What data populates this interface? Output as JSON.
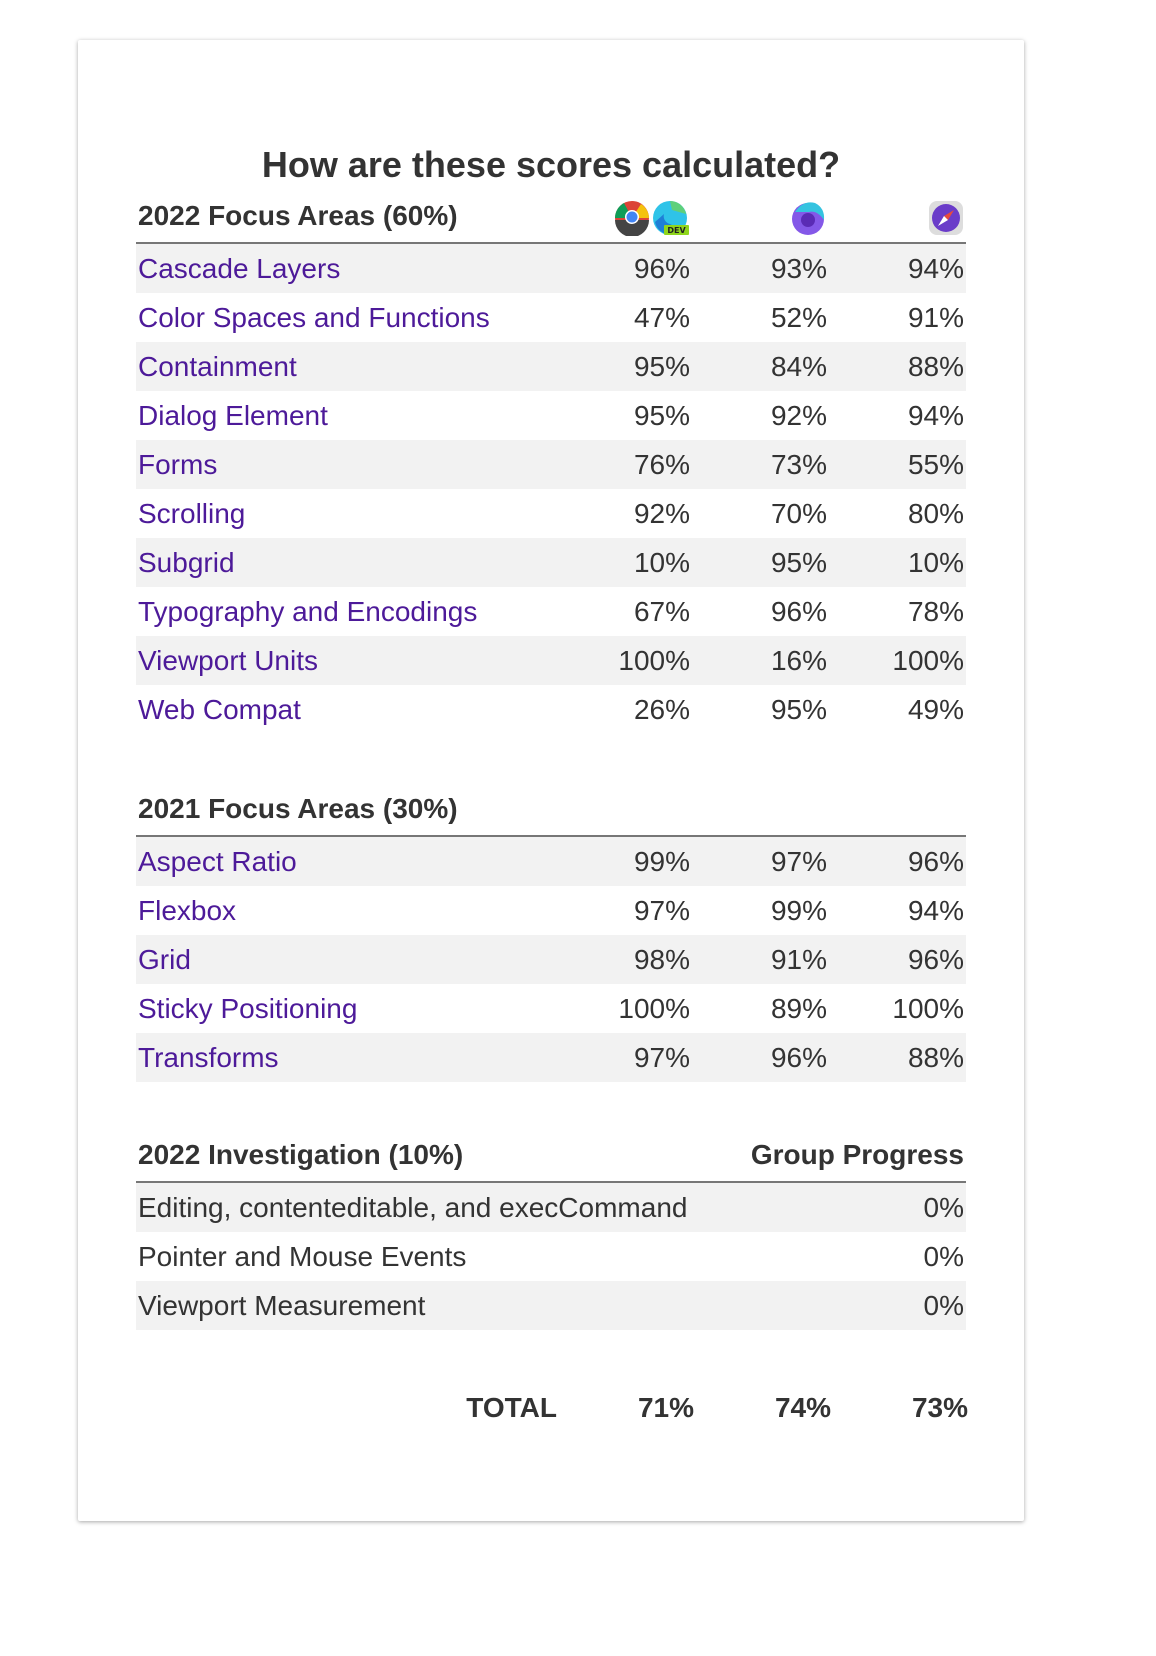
{
  "title": "How are these scores calculated?",
  "browsers": [
    {
      "icons": [
        "chrome-dev-icon",
        "edge-dev-icon"
      ]
    },
    {
      "icons": [
        "firefox-nightly-icon"
      ]
    },
    {
      "icons": [
        "safari-tech-preview-icon"
      ]
    }
  ],
  "focus2022": {
    "heading": "2022 Focus Areas (60%)",
    "rows": [
      {
        "name": "Cascade Layers",
        "scores": [
          "96%",
          "93%",
          "94%"
        ]
      },
      {
        "name": "Color Spaces and Functions",
        "scores": [
          "47%",
          "52%",
          "91%"
        ]
      },
      {
        "name": "Containment",
        "scores": [
          "95%",
          "84%",
          "88%"
        ]
      },
      {
        "name": "Dialog Element",
        "scores": [
          "95%",
          "92%",
          "94%"
        ]
      },
      {
        "name": "Forms",
        "scores": [
          "76%",
          "73%",
          "55%"
        ]
      },
      {
        "name": "Scrolling",
        "scores": [
          "92%",
          "70%",
          "80%"
        ]
      },
      {
        "name": "Subgrid",
        "scores": [
          "10%",
          "95%",
          "10%"
        ]
      },
      {
        "name": "Typography and Encodings",
        "scores": [
          "67%",
          "96%",
          "78%"
        ]
      },
      {
        "name": "Viewport Units",
        "scores": [
          "100%",
          "16%",
          "100%"
        ]
      },
      {
        "name": "Web Compat",
        "scores": [
          "26%",
          "95%",
          "49%"
        ]
      }
    ]
  },
  "focus2021": {
    "heading": "2021 Focus Areas (30%)",
    "rows": [
      {
        "name": "Aspect Ratio",
        "scores": [
          "99%",
          "97%",
          "96%"
        ]
      },
      {
        "name": "Flexbox",
        "scores": [
          "97%",
          "99%",
          "94%"
        ]
      },
      {
        "name": "Grid",
        "scores": [
          "98%",
          "91%",
          "96%"
        ]
      },
      {
        "name": "Sticky Positioning",
        "scores": [
          "100%",
          "89%",
          "100%"
        ]
      },
      {
        "name": "Transforms",
        "scores": [
          "97%",
          "96%",
          "88%"
        ]
      }
    ]
  },
  "investigation": {
    "heading": "2022 Investigation (10%)",
    "progress_heading": "Group Progress",
    "rows": [
      {
        "name": "Editing, contenteditable, and execCommand",
        "progress": "0%"
      },
      {
        "name": "Pointer and Mouse Events",
        "progress": "0%"
      },
      {
        "name": "Viewport Measurement",
        "progress": "0%"
      }
    ]
  },
  "total": {
    "label": "TOTAL",
    "scores": [
      "71%",
      "74%",
      "73%"
    ]
  },
  "colors": {
    "link": "#4d1a99",
    "stripe": "#f2f2f2",
    "rule": "#777777"
  }
}
